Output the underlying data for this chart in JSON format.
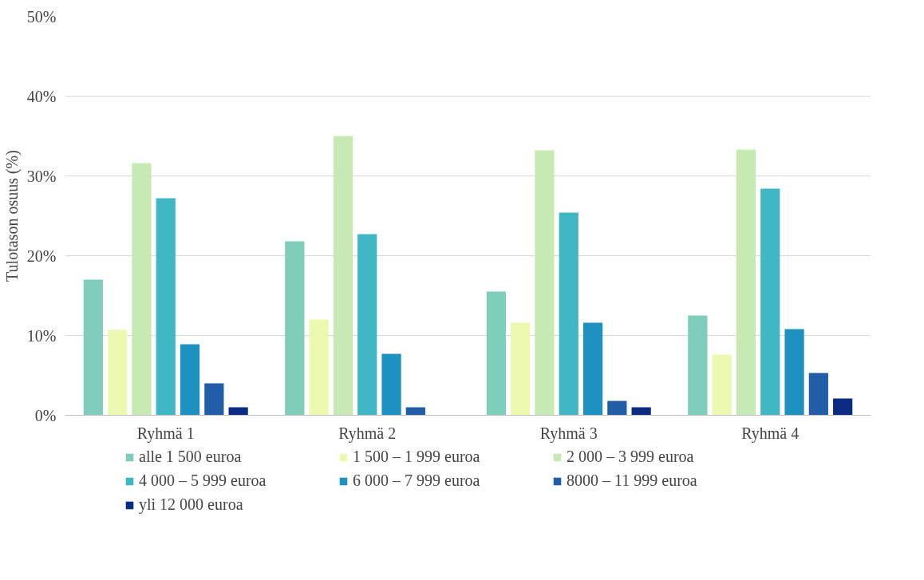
{
  "chart_data": {
    "type": "bar",
    "ylabel": "Tulotason osuus (%)",
    "categories": [
      "Ryhmä 1",
      "Ryhmä 2",
      "Ryhmä 3",
      "Ryhmä 4"
    ],
    "series": [
      {
        "name": "alle 1 500 euroa",
        "color": "#7fcdbb",
        "values": [
          17,
          21.8,
          15.5,
          12.5
        ]
      },
      {
        "name": "1 500 – 1 999 euroa",
        "color": "#edf8b1",
        "values": [
          10.7,
          12,
          11.6,
          7.6
        ]
      },
      {
        "name": "2 000 – 3 999 euroa",
        "color": "#c7e9b4",
        "values": [
          31.6,
          35,
          33.2,
          33.3
        ]
      },
      {
        "name": "4 000 – 5 999 euroa",
        "color": "#41b6c4",
        "values": [
          27.2,
          22.7,
          25.4,
          28.4
        ]
      },
      {
        "name": "6 000 – 7 999 euroa",
        "color": "#1d91c0",
        "values": [
          8.9,
          7.7,
          11.6,
          10.8
        ]
      },
      {
        "name": "8000 – 11 999 euroa",
        "color": "#225ea8",
        "values": [
          4,
          1,
          1.8,
          5.3
        ]
      },
      {
        "name": "yli 12 000 euroa",
        "color": "#0c2c84",
        "values": [
          1,
          0,
          1,
          2.1
        ]
      }
    ],
    "ylim": [
      0,
      50
    ],
    "yticks": [
      {
        "value": 0,
        "label": "0%"
      },
      {
        "value": 10,
        "label": "10%"
      },
      {
        "value": 20,
        "label": "20%"
      },
      {
        "value": 30,
        "label": "30%"
      },
      {
        "value": 40,
        "label": "40%"
      },
      {
        "value": 50,
        "label": "50%"
      }
    ],
    "grid": "y",
    "legend": "bottom"
  }
}
